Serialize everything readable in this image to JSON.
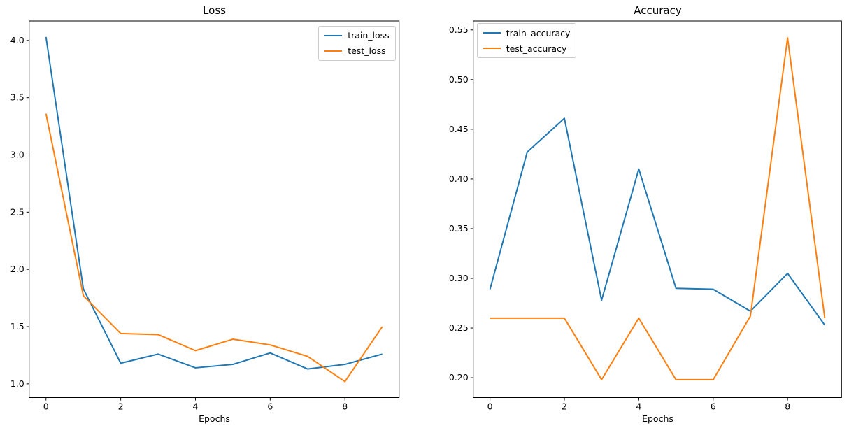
{
  "figure": {
    "background": "#ffffff",
    "text_color": "#000000",
    "spine_color": "#000000",
    "legend_border_color": "#cccccc"
  },
  "chart_data": [
    {
      "id": "loss",
      "type": "line",
      "title": "Loss",
      "xlabel": "Epochs",
      "ylabel": "",
      "grid": false,
      "x": [
        0,
        1,
        2,
        3,
        4,
        5,
        6,
        7,
        8,
        9
      ],
      "series": [
        {
          "name": "train_loss",
          "color": "#1f77b4",
          "values": [
            4.03,
            1.83,
            1.18,
            1.26,
            1.14,
            1.17,
            1.27,
            1.13,
            1.17,
            1.26
          ]
        },
        {
          "name": "test_loss",
          "color": "#ff7f0e",
          "values": [
            3.36,
            1.77,
            1.44,
            1.43,
            1.29,
            1.39,
            1.34,
            1.24,
            1.02,
            1.5
          ]
        }
      ],
      "xlim": [
        -0.45,
        9.45
      ],
      "ylim": [
        0.88,
        4.17
      ],
      "xtick_labels": [
        "0",
        "2",
        "4",
        "6",
        "8"
      ],
      "ytick_labels": [
        "1.0",
        "1.5",
        "2.0",
        "2.5",
        "3.0",
        "3.5",
        "4.0"
      ],
      "legend_position": "upper right"
    },
    {
      "id": "accuracy",
      "type": "line",
      "title": "Accuracy",
      "xlabel": "Epochs",
      "ylabel": "",
      "grid": false,
      "x": [
        0,
        1,
        2,
        3,
        4,
        5,
        6,
        7,
        8,
        9
      ],
      "series": [
        {
          "name": "train_accuracy",
          "color": "#1f77b4",
          "values": [
            0.289,
            0.427,
            0.461,
            0.278,
            0.41,
            0.29,
            0.289,
            0.267,
            0.305,
            0.253
          ]
        },
        {
          "name": "test_accuracy",
          "color": "#ff7f0e",
          "values": [
            0.26,
            0.26,
            0.26,
            0.198,
            0.26,
            0.198,
            0.198,
            0.262,
            0.542,
            0.26
          ]
        }
      ],
      "xlim": [
        -0.45,
        9.45
      ],
      "ylim": [
        0.18,
        0.559
      ],
      "xtick_labels": [
        "0",
        "2",
        "4",
        "6",
        "8"
      ],
      "ytick_labels": [
        "0.20",
        "0.25",
        "0.30",
        "0.35",
        "0.40",
        "0.45",
        "0.50",
        "0.55"
      ],
      "legend_position": "upper left"
    }
  ]
}
